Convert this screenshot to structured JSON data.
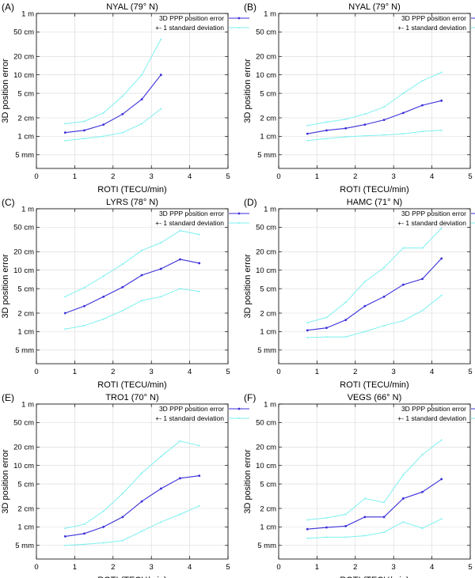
{
  "colors": {
    "main": "#3a2fd9",
    "band": "#7ff0f0",
    "grid": "#d8d8d8"
  },
  "chart_data": [
    {
      "type": "line",
      "letter": "(A)",
      "title": "NYAL (79° N)",
      "xlabel": "ROTI (TECU/min)",
      "ylabel": "3D position error",
      "xlim": [
        0,
        5
      ],
      "ylim_cm": [
        0.3,
        100
      ],
      "yscale": "log",
      "xticks": [
        "0",
        "1",
        "2",
        "3",
        "4",
        "5"
      ],
      "yticks": [
        {
          "label": "1 m",
          "value": 100
        },
        {
          "label": "50 cm",
          "value": 50
        },
        {
          "label": "20 cm",
          "value": 20
        },
        {
          "label": "10 cm",
          "value": 10
        },
        {
          "label": "5 cm",
          "value": 5
        },
        {
          "label": "2 cm",
          "value": 2
        },
        {
          "label": "1 cm",
          "value": 1
        },
        {
          "label": "5 mm",
          "value": 0.5
        }
      ],
      "legend": [
        "3D PPP position error",
        "+- 1 standard deviation"
      ],
      "x": [
        0.75,
        1.25,
        1.75,
        2.25,
        2.75,
        3.25
      ],
      "series": [
        {
          "name": "3D PPP position error",
          "role": "main",
          "values": [
            1.15,
            1.25,
            1.55,
            2.3,
            4.0,
            10.0
          ]
        },
        {
          "name": "+1 standard deviation",
          "role": "band",
          "values": [
            1.6,
            1.75,
            2.4,
            4.5,
            10.0,
            38.0
          ]
        },
        {
          "name": "-1 standard deviation",
          "role": "band",
          "values": [
            0.85,
            0.92,
            1.0,
            1.15,
            1.6,
            2.8
          ]
        }
      ]
    },
    {
      "type": "line",
      "letter": "(B)",
      "title": "NYAL (79° N)",
      "xlabel": "ROTI (TECU/min)",
      "ylabel": "3D position error",
      "xlim": [
        0,
        5
      ],
      "ylim_cm": [
        0.3,
        100
      ],
      "yscale": "log",
      "xticks": [
        "0",
        "1",
        "2",
        "3",
        "4",
        "5"
      ],
      "yticks": [
        {
          "label": "1 m",
          "value": 100
        },
        {
          "label": "50 cm",
          "value": 50
        },
        {
          "label": "20 cm",
          "value": 20
        },
        {
          "label": "10 cm",
          "value": 10
        },
        {
          "label": "5 cm",
          "value": 5
        },
        {
          "label": "2 cm",
          "value": 2
        },
        {
          "label": "1 cm",
          "value": 1
        },
        {
          "label": "5 mm",
          "value": 0.5
        }
      ],
      "legend": [
        "3D PPP position error",
        "+- 1 standard deviation"
      ],
      "x": [
        0.75,
        1.25,
        1.75,
        2.25,
        2.75,
        3.25,
        3.75,
        4.25
      ],
      "series": [
        {
          "name": "3D PPP position error",
          "role": "main",
          "values": [
            1.1,
            1.25,
            1.35,
            1.55,
            1.85,
            2.4,
            3.2,
            3.8
          ]
        },
        {
          "name": "+1 standard deviation",
          "role": "band",
          "values": [
            1.5,
            1.7,
            1.9,
            2.3,
            3.0,
            5.0,
            8.0,
            11.0
          ]
        },
        {
          "name": "-1 standard deviation",
          "role": "band",
          "values": [
            0.85,
            0.92,
            0.98,
            1.02,
            1.05,
            1.1,
            1.2,
            1.25
          ]
        }
      ]
    },
    {
      "type": "line",
      "letter": "(C)",
      "title": "LYRS (78° N)",
      "xlabel": "ROTI (TECU/min)",
      "ylabel": "3D position error",
      "xlim": [
        0,
        5
      ],
      "ylim_cm": [
        0.3,
        100
      ],
      "yscale": "log",
      "xticks": [
        "0",
        "1",
        "2",
        "3",
        "4",
        "5"
      ],
      "yticks": [
        {
          "label": "1 m",
          "value": 100
        },
        {
          "label": "50 cm",
          "value": 50
        },
        {
          "label": "20 cm",
          "value": 20
        },
        {
          "label": "10 cm",
          "value": 10
        },
        {
          "label": "5 cm",
          "value": 5
        },
        {
          "label": "2 cm",
          "value": 2
        },
        {
          "label": "1 cm",
          "value": 1
        },
        {
          "label": "5 mm",
          "value": 0.5
        }
      ],
      "legend": [
        "3D PPP position error",
        "+- 1 standard deviation"
      ],
      "x": [
        0.75,
        1.25,
        1.75,
        2.25,
        2.75,
        3.25,
        3.75,
        4.25
      ],
      "series": [
        {
          "name": "3D PPP position error",
          "role": "main",
          "values": [
            2.0,
            2.6,
            3.7,
            5.3,
            8.3,
            10.5,
            15.0,
            13.0
          ]
        },
        {
          "name": "+1 standard deviation",
          "role": "band",
          "values": [
            3.7,
            5.2,
            8.0,
            12.5,
            21.0,
            28.0,
            44.0,
            38.0
          ]
        },
        {
          "name": "-1 standard deviation",
          "role": "band",
          "values": [
            1.1,
            1.25,
            1.6,
            2.2,
            3.2,
            3.7,
            5.0,
            4.5
          ]
        }
      ]
    },
    {
      "type": "line",
      "letter": "(D)",
      "title": "HAMC (71° N)",
      "xlabel": "ROTI (TECU/min)",
      "ylabel": "3D position error",
      "xlim": [
        0,
        5
      ],
      "ylim_cm": [
        0.3,
        100
      ],
      "yscale": "log",
      "xticks": [
        "0",
        "1",
        "2",
        "3",
        "4",
        "5"
      ],
      "yticks": [
        {
          "label": "1 m",
          "value": 100
        },
        {
          "label": "50 cm",
          "value": 50
        },
        {
          "label": "20 cm",
          "value": 20
        },
        {
          "label": "10 cm",
          "value": 10
        },
        {
          "label": "5 cm",
          "value": 5
        },
        {
          "label": "2 cm",
          "value": 2
        },
        {
          "label": "1 cm",
          "value": 1
        },
        {
          "label": "5 mm",
          "value": 0.5
        }
      ],
      "legend": [
        "3D PPP position error",
        "+- 1 standard deviation"
      ],
      "x": [
        0.75,
        1.25,
        1.75,
        2.25,
        2.75,
        3.25,
        3.75,
        4.25
      ],
      "series": [
        {
          "name": "3D PPP position error",
          "role": "main",
          "values": [
            1.05,
            1.15,
            1.55,
            2.6,
            3.7,
            5.8,
            7.2,
            15.5
          ]
        },
        {
          "name": "+1 standard deviation",
          "role": "band",
          "values": [
            1.4,
            1.7,
            3.0,
            6.5,
            11.0,
            23.0,
            23.0,
            48.0
          ]
        },
        {
          "name": "-1 standard deviation",
          "role": "band",
          "values": [
            0.8,
            0.82,
            0.82,
            1.0,
            1.25,
            1.5,
            2.2,
            3.9
          ]
        }
      ]
    },
    {
      "type": "line",
      "letter": "(E)",
      "title": "TRO1 (70° N)",
      "xlabel": "ROTI (TECU/min)",
      "ylabel": "3D position error",
      "xlim": [
        0,
        5
      ],
      "ylim_cm": [
        0.3,
        100
      ],
      "yscale": "log",
      "xticks": [
        "0",
        "1",
        "2",
        "3",
        "4",
        "5"
      ],
      "yticks": [
        {
          "label": "1 m",
          "value": 100
        },
        {
          "label": "50 cm",
          "value": 50
        },
        {
          "label": "20 cm",
          "value": 20
        },
        {
          "label": "10 cm",
          "value": 10
        },
        {
          "label": "5 cm",
          "value": 5
        },
        {
          "label": "2 cm",
          "value": 2
        },
        {
          "label": "1 cm",
          "value": 1
        },
        {
          "label": "5 mm",
          "value": 0.5
        }
      ],
      "legend": [
        "3D PPP position error",
        "+- 1 standard deviation"
      ],
      "x": [
        0.75,
        1.25,
        1.75,
        2.25,
        2.75,
        3.25,
        3.75,
        4.25
      ],
      "series": [
        {
          "name": "3D PPP position error",
          "role": "main",
          "values": [
            0.7,
            0.78,
            1.0,
            1.45,
            2.6,
            4.2,
            6.2,
            6.8
          ]
        },
        {
          "name": "+1 standard deviation",
          "role": "band",
          "values": [
            0.95,
            1.1,
            1.8,
            3.5,
            7.5,
            14.0,
            25.0,
            21.0
          ]
        },
        {
          "name": "-1 standard deviation",
          "role": "band",
          "values": [
            0.5,
            0.52,
            0.55,
            0.6,
            0.85,
            1.2,
            1.6,
            2.2
          ]
        }
      ]
    },
    {
      "type": "line",
      "letter": "(F)",
      "title": "VEGS (66° N)",
      "xlabel": "ROTI (TECU/min)",
      "ylabel": "3D position error",
      "xlim": [
        0,
        5
      ],
      "ylim_cm": [
        0.3,
        100
      ],
      "yscale": "log",
      "xticks": [
        "0",
        "1",
        "2",
        "3",
        "4",
        "5"
      ],
      "yticks": [
        {
          "label": "1 m",
          "value": 100
        },
        {
          "label": "50 cm",
          "value": 50
        },
        {
          "label": "20 cm",
          "value": 20
        },
        {
          "label": "10 cm",
          "value": 10
        },
        {
          "label": "5 cm",
          "value": 5
        },
        {
          "label": "2 cm",
          "value": 2
        },
        {
          "label": "1 cm",
          "value": 1
        },
        {
          "label": "5 mm",
          "value": 0.5
        }
      ],
      "legend": [
        "3D PPP position error",
        "+- 1 standard deviation"
      ],
      "x": [
        0.75,
        1.25,
        1.75,
        2.25,
        2.75,
        3.25,
        3.75,
        4.25
      ],
      "series": [
        {
          "name": "3D PPP position error",
          "role": "main",
          "values": [
            0.92,
            0.98,
            1.03,
            1.45,
            1.45,
            2.9,
            3.7,
            6.0
          ]
        },
        {
          "name": "+1 standard deviation",
          "role": "band",
          "values": [
            1.3,
            1.4,
            1.6,
            2.9,
            2.5,
            7.0,
            15.0,
            26.0
          ]
        },
        {
          "name": "-1 standard deviation",
          "role": "band",
          "values": [
            0.65,
            0.68,
            0.68,
            0.72,
            0.82,
            1.2,
            0.95,
            1.35
          ]
        }
      ]
    }
  ]
}
